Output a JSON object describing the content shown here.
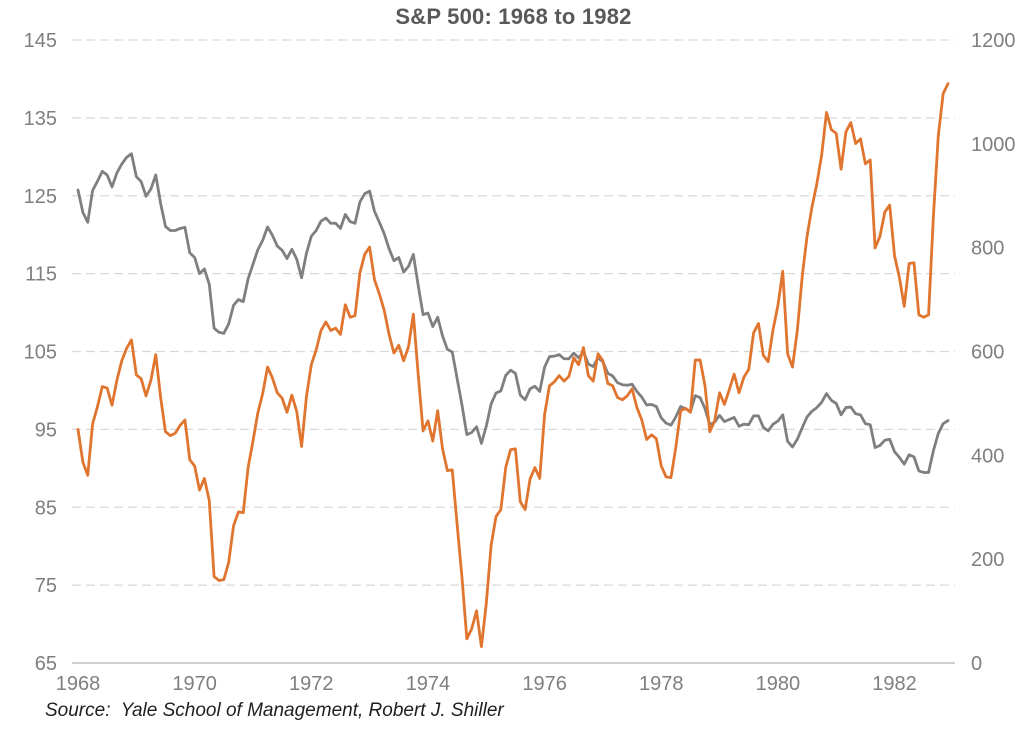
{
  "title": "S&P 500: 1968 to 1982",
  "source": "Source:  Yale School of Management, Robert J. Shiller",
  "colors": {
    "orange_series": "#E0752F",
    "gray_series": "#7F7F7F",
    "gridline": "#D9D9D9",
    "axis_line": "#BFBFBF",
    "tick_label": "#7F7F7F",
    "title_text": "#595959",
    "source_text": "#1F1F1F"
  },
  "chart_data": {
    "type": "line",
    "title": "S&P 500: 1968 to 1982",
    "source": "Source:  Yale School of Management, Robert J. Shiller",
    "grid": "horizontal dashed lines at left-axis ticks",
    "legend_position": "none",
    "x_frequency": "monthly",
    "x_start_year": 1968,
    "x_end_year": 1982,
    "x_tick_labels": [
      "1968",
      "1970",
      "1972",
      "1974",
      "1976",
      "1978",
      "1980",
      "1982"
    ],
    "left_axis": {
      "ticks": [
        145,
        135,
        125,
        115,
        105,
        95,
        85,
        75,
        65
      ],
      "range": [
        65,
        145
      ]
    },
    "right_axis": {
      "ticks": [
        1200,
        1000,
        800,
        600,
        400,
        200,
        0
      ],
      "range": [
        0,
        1200
      ]
    },
    "series": [
      {
        "name": "gray-line-right-axis",
        "axis": "right",
        "color": "#7F7F7F",
        "values": [
          911,
          868,
          849,
          910,
          928,
          947,
          940,
          917,
          944,
          961,
          974,
          981,
          937,
          927,
          899,
          913,
          940,
          885,
          841,
          833,
          833,
          837,
          839,
          790,
          781,
          750,
          759,
          730,
          645,
          637,
          635,
          653,
          689,
          700,
          696,
          740,
          768,
          796,
          814,
          840,
          824,
          803,
          795,
          779,
          797,
          778,
          742,
          789,
          822,
          833,
          851,
          857,
          847,
          847,
          837,
          864,
          850,
          847,
          888,
          904,
          909,
          870,
          849,
          827,
          798,
          775,
          781,
          753,
          764,
          787,
          727,
          671,
          674,
          648,
          666,
          630,
          604,
          599,
          548,
          497,
          440,
          444,
          455,
          423,
          456,
          499,
          520,
          524,
          554,
          564,
          558,
          516,
          507,
          528,
          533,
          523,
          570,
          590,
          591,
          594,
          586,
          586,
          597,
          588,
          599,
          576,
          571,
          588,
          580,
          558,
          553,
          540,
          536,
          535,
          537,
          523,
          512,
          497,
          498,
          494,
          472,
          462,
          458,
          474,
          494,
          490,
          484,
          515,
          511,
          490,
          459,
          464,
          477,
          465,
          469,
          473,
          456,
          460,
          459,
          476,
          476,
          454,
          447,
          460,
          466,
          478,
          427,
          416,
          431,
          453,
          474,
          485,
          492,
          502,
          519,
          506,
          500,
          478,
          492,
          493,
          480,
          478,
          461,
          459,
          415,
          419,
          429,
          431,
          407,
          396,
          383,
          401,
          397,
          370,
          367,
          367,
          409,
          442,
          461,
          467
        ]
      },
      {
        "name": "orange-line-left-axis",
        "axis": "left",
        "color": "#E0752F",
        "values": [
          95.0,
          90.8,
          89.1,
          95.7,
          97.9,
          100.5,
          100.3,
          98.1,
          101.3,
          103.8,
          105.4,
          106.5,
          102.0,
          101.5,
          99.3,
          101.3,
          104.6,
          99.1,
          94.7,
          94.2,
          94.5,
          95.5,
          96.2,
          91.1,
          90.3,
          87.2,
          88.7,
          85.9,
          76.1,
          75.6,
          75.7,
          77.9,
          82.6,
          84.4,
          84.3,
          90.1,
          93.5,
          97.1,
          99.6,
          103.0,
          101.6,
          99.7,
          99.0,
          97.2,
          99.4,
          97.3,
          92.8,
          99.2,
          103.3,
          105.2,
          107.7,
          108.8,
          107.7,
          108.0,
          107.2,
          111.0,
          109.4,
          109.6,
          115.1,
          117.5,
          118.4,
          114.2,
          112.4,
          110.3,
          107.2,
          104.8,
          105.8,
          103.8,
          105.6,
          109.8,
          102.0,
          94.8,
          96.1,
          93.5,
          97.4,
          92.5,
          89.7,
          89.8,
          82.8,
          76.0,
          68.1,
          69.4,
          71.7,
          67.1,
          72.6,
          80.1,
          83.8,
          84.7,
          90.1,
          92.4,
          92.5,
          85.7,
          84.7,
          88.6,
          90.1,
          88.7,
          96.9,
          100.6,
          101.1,
          101.9,
          101.2,
          101.8,
          104.2,
          103.3,
          105.5,
          101.9,
          101.2,
          104.7,
          103.8,
          100.9,
          100.6,
          99.1,
          98.8,
          99.3,
          100.2,
          97.8,
          96.2,
          93.7,
          94.3,
          93.8,
          90.3,
          88.9,
          88.8,
          92.7,
          97.4,
          97.7,
          97.2,
          103.9,
          103.9,
          100.6,
          94.7,
          96.1,
          99.7,
          98.2,
          100.1,
          102.1,
          99.7,
          101.7,
          102.7,
          107.4,
          108.6,
          104.5,
          103.7,
          107.8,
          110.9,
          115.3,
          104.7,
          103.0,
          107.7,
          114.6,
          119.8,
          123.5,
          126.5,
          130.2,
          135.7,
          133.5,
          133.0,
          128.4,
          133.2,
          134.4,
          131.7,
          132.3,
          129.1,
          129.6,
          118.3,
          119.8,
          122.9,
          123.8,
          117.3,
          114.5,
          110.8,
          116.3,
          116.4,
          109.7,
          109.4,
          109.7,
          122.4,
          132.7,
          138.1,
          139.4
        ]
      }
    ]
  }
}
